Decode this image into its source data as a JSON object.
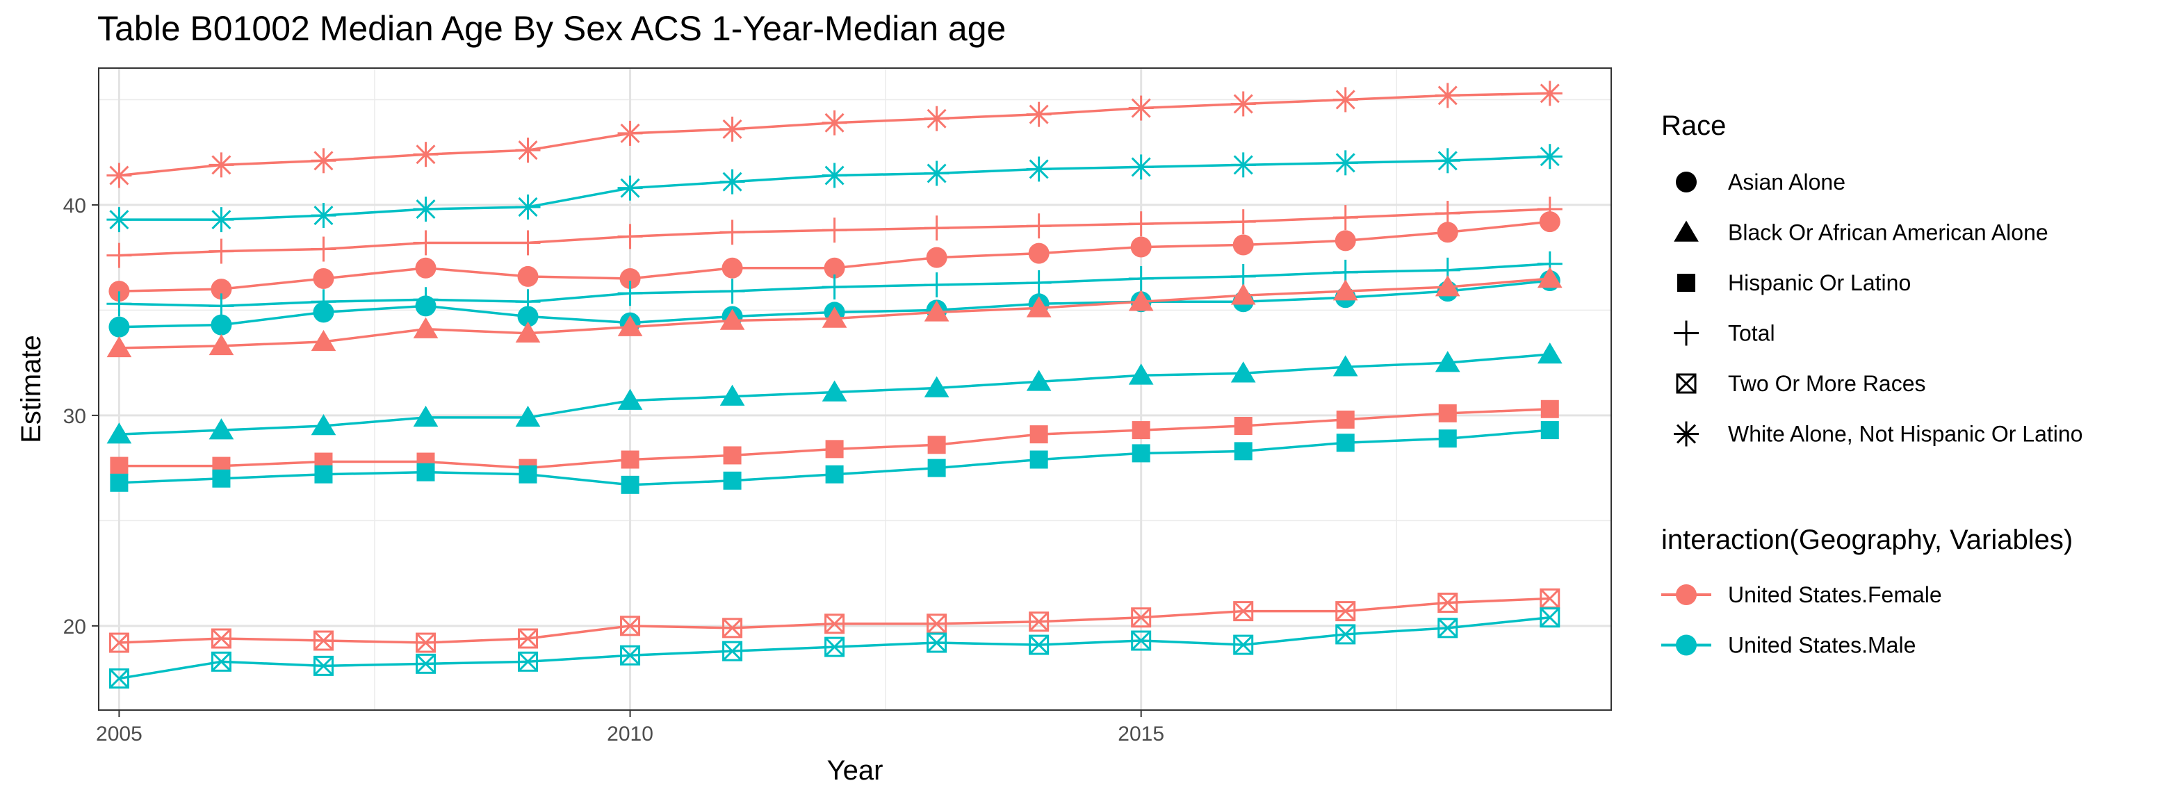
{
  "chart_data": {
    "type": "line",
    "title": "Table B01002 Median Age By Sex ACS 1-Year-Median age",
    "xlabel": "Year",
    "ylabel": "Estimate",
    "xlim": [
      2004.8,
      2019.6
    ],
    "ylim": [
      16.0,
      46.5
    ],
    "x_ticks": [
      2005,
      2010,
      2015
    ],
    "y_ticks": [
      20,
      30,
      40
    ],
    "grid": true,
    "legend_position": "right",
    "x": [
      2005,
      2006,
      2007,
      2008,
      2009,
      2010,
      2011,
      2012,
      2013,
      2014,
      2015,
      2016,
      2017,
      2018,
      2019
    ],
    "color_legend": {
      "title": "interaction(Geography, Variables)",
      "items": [
        {
          "label": "United States.Female",
          "color": "#F8766D"
        },
        {
          "label": "United States.Male",
          "color": "#00BFC4"
        }
      ]
    },
    "shape_legend": {
      "title": "Race",
      "items": [
        {
          "label": "Asian Alone",
          "shape": "circle"
        },
        {
          "label": "Black Or African American Alone",
          "shape": "triangle"
        },
        {
          "label": "Hispanic Or Latino",
          "shape": "square"
        },
        {
          "label": "Total",
          "shape": "plus"
        },
        {
          "label": "Two Or More Races",
          "shape": "square-x"
        },
        {
          "label": "White Alone, Not Hispanic Or Latino",
          "shape": "asterisk"
        }
      ]
    },
    "series": [
      {
        "race": "White Alone, Not Hispanic Or Latino",
        "group": "United States.Female",
        "shape": "asterisk",
        "color": "#F8766D",
        "values": [
          41.4,
          41.9,
          42.1,
          42.4,
          42.6,
          43.4,
          43.6,
          43.9,
          44.1,
          44.3,
          44.6,
          44.8,
          45.0,
          45.2,
          45.3
        ]
      },
      {
        "race": "White Alone, Not Hispanic Or Latino",
        "group": "United States.Male",
        "shape": "asterisk",
        "color": "#00BFC4",
        "values": [
          39.3,
          39.3,
          39.5,
          39.8,
          39.9,
          40.8,
          41.1,
          41.4,
          41.5,
          41.7,
          41.8,
          41.9,
          42.0,
          42.1,
          42.3
        ]
      },
      {
        "race": "Total",
        "group": "United States.Female",
        "shape": "plus",
        "color": "#F8766D",
        "values": [
          37.6,
          37.8,
          37.9,
          38.2,
          38.2,
          38.5,
          38.7,
          38.8,
          38.9,
          39.0,
          39.1,
          39.2,
          39.4,
          39.6,
          39.8
        ]
      },
      {
        "race": "Asian Alone",
        "group": "United States.Female",
        "shape": "circle",
        "color": "#F8766D",
        "values": [
          35.9,
          36.0,
          36.5,
          37.0,
          36.6,
          36.5,
          37.0,
          37.0,
          37.5,
          37.7,
          38.0,
          38.1,
          38.3,
          38.7,
          39.2
        ]
      },
      {
        "race": "Total",
        "group": "United States.Male",
        "shape": "plus",
        "color": "#00BFC4",
        "values": [
          35.3,
          35.2,
          35.4,
          35.5,
          35.4,
          35.8,
          35.9,
          36.1,
          36.2,
          36.3,
          36.5,
          36.6,
          36.8,
          36.9,
          37.2
        ]
      },
      {
        "race": "Asian Alone",
        "group": "United States.Male",
        "shape": "circle",
        "color": "#00BFC4",
        "values": [
          34.2,
          34.3,
          34.9,
          35.2,
          34.7,
          34.4,
          34.7,
          34.9,
          35.0,
          35.3,
          35.4,
          35.4,
          35.6,
          35.9,
          36.4
        ]
      },
      {
        "race": "Black Or African American Alone",
        "group": "United States.Female",
        "shape": "triangle",
        "color": "#F8766D",
        "values": [
          33.2,
          33.3,
          33.5,
          34.1,
          33.9,
          34.2,
          34.5,
          34.6,
          34.9,
          35.1,
          35.4,
          35.7,
          35.9,
          36.1,
          36.5
        ]
      },
      {
        "race": "Black Or African American Alone",
        "group": "United States.Male",
        "shape": "triangle",
        "color": "#00BFC4",
        "values": [
          29.1,
          29.3,
          29.5,
          29.9,
          29.9,
          30.7,
          30.9,
          31.1,
          31.3,
          31.6,
          31.9,
          32.0,
          32.3,
          32.5,
          32.9
        ]
      },
      {
        "race": "Hispanic Or Latino",
        "group": "United States.Female",
        "shape": "square",
        "color": "#F8766D",
        "values": [
          27.6,
          27.6,
          27.8,
          27.8,
          27.5,
          27.9,
          28.1,
          28.4,
          28.6,
          29.1,
          29.3,
          29.5,
          29.8,
          30.1,
          30.3
        ]
      },
      {
        "race": "Hispanic Or Latino",
        "group": "United States.Male",
        "shape": "square",
        "color": "#00BFC4",
        "values": [
          26.8,
          27.0,
          27.2,
          27.3,
          27.2,
          26.7,
          26.9,
          27.2,
          27.5,
          27.9,
          28.2,
          28.3,
          28.7,
          28.9,
          29.3
        ]
      },
      {
        "race": "Two Or More Races",
        "group": "United States.Female",
        "shape": "square-x",
        "color": "#F8766D",
        "values": [
          19.2,
          19.4,
          19.3,
          19.2,
          19.4,
          20.0,
          19.9,
          20.1,
          20.1,
          20.2,
          20.4,
          20.7,
          20.7,
          21.1,
          21.3
        ]
      },
      {
        "race": "Two Or More Races",
        "group": "United States.Male",
        "shape": "square-x",
        "color": "#00BFC4",
        "values": [
          17.5,
          18.3,
          18.1,
          18.2,
          18.3,
          18.6,
          18.8,
          19.0,
          19.2,
          19.1,
          19.3,
          19.1,
          19.6,
          19.9,
          20.4
        ]
      }
    ]
  }
}
